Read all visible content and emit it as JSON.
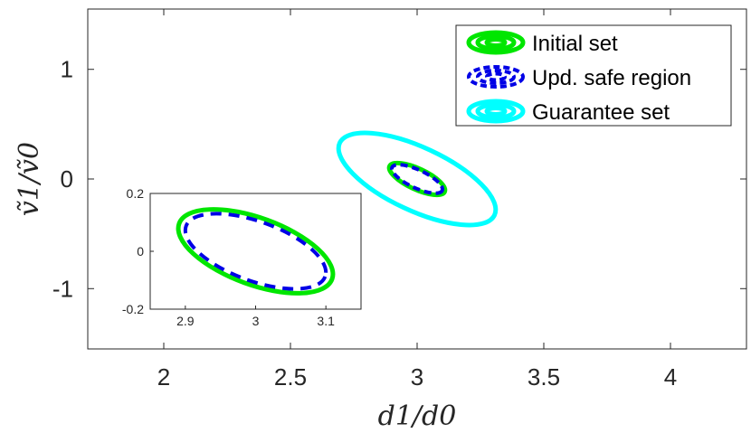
{
  "chart_data": {
    "type": "scatter",
    "main": {
      "xlim": [
        1.7,
        4.3
      ],
      "ylim": [
        -1.55,
        1.55
      ],
      "xticks": [
        2,
        2.5,
        3,
        3.5,
        4
      ],
      "xtick_labels": [
        "2",
        "2.5",
        "3",
        "3.5",
        "4"
      ],
      "yticks": [
        -1,
        0,
        1
      ],
      "ytick_labels": [
        "-1",
        "0",
        "1"
      ],
      "xlabel": "d1/d0",
      "ylabel": "ṽ1/ṽ0",
      "legend_position": "top-right",
      "grid": false
    },
    "inset": {
      "xlim": [
        2.85,
        3.15
      ],
      "ylim": [
        -0.2,
        0.2
      ],
      "xticks": [
        2.9,
        3,
        3.1
      ],
      "xtick_labels": [
        "2.9",
        "3",
        "3.1"
      ],
      "yticks": [
        -0.2,
        0,
        0.2
      ],
      "ytick_labels": [
        "-0.2",
        "0",
        "0.2"
      ]
    },
    "series": [
      {
        "name": "Initial set",
        "color": "#00e600",
        "style": "solid",
        "shape": "ellipse",
        "center": [
          3.0,
          0.0
        ],
        "x_extent": [
          2.9,
          3.12
        ],
        "y_extent": [
          -0.145,
          0.145
        ],
        "orientation": "negative correlation"
      },
      {
        "name": "Upd. safe region",
        "color": "#0000e6",
        "style": "dashed",
        "shape": "ellipse",
        "center": [
          3.0,
          0.0
        ],
        "x_extent": [
          2.91,
          3.11
        ],
        "y_extent": [
          -0.13,
          0.13
        ],
        "orientation": "negative correlation"
      },
      {
        "name": "Guarantee set",
        "color": "#00ffff",
        "style": "solid",
        "shape": "ellipse",
        "center": [
          3.0,
          0.0
        ],
        "x_extent": [
          2.68,
          3.3
        ],
        "y_extent": [
          -0.42,
          0.42
        ],
        "orientation": "negative correlation"
      }
    ]
  }
}
